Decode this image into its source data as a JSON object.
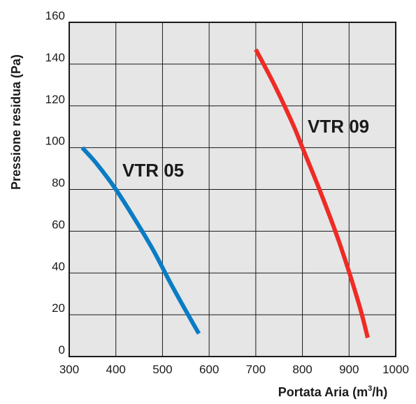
{
  "chart_data": {
    "type": "line",
    "title": "",
    "xlabel": "Portata Aria (m",
    "xlabel_sup": "3",
    "xlabel_tail": "/h)",
    "ylabel": "Pressione residua (Pa)",
    "xlim": [
      300,
      1000
    ],
    "ylim": [
      0,
      160
    ],
    "x_ticks": [
      "300",
      "400",
      "500",
      "600",
      "700",
      "800",
      "900",
      "1000"
    ],
    "y_ticks": [
      "0",
      "20",
      "40",
      "60",
      "80",
      "100",
      "120",
      "140",
      "160"
    ],
    "grid": true,
    "background": "#e6e6e6",
    "series": [
      {
        "name": "VTR 05",
        "color": "#0a7cc4",
        "x": [
          328,
          360,
          400,
          440,
          480,
          520,
          560,
          578
        ],
        "y": [
          100,
          92,
          80,
          66,
          51,
          34,
          18,
          11
        ]
      },
      {
        "name": "VTR 09",
        "color": "#ee2b25",
        "x": [
          700,
          740,
          780,
          800,
          840,
          880,
          920,
          940
        ],
        "y": [
          147,
          130,
          111,
          100,
          78,
          54,
          26,
          9
        ]
      }
    ]
  }
}
